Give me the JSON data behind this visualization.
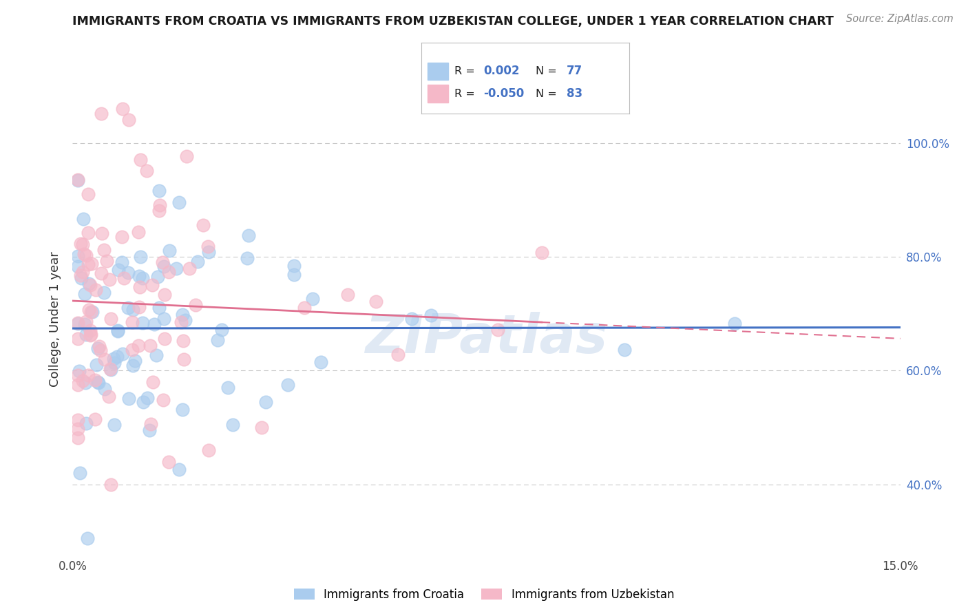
{
  "title": "IMMIGRANTS FROM CROATIA VS IMMIGRANTS FROM UZBEKISTAN COLLEGE, UNDER 1 YEAR CORRELATION CHART",
  "source": "Source: ZipAtlas.com",
  "ylabel": "College, Under 1 year",
  "xlim": [
    0.0,
    0.15
  ],
  "ylim": [
    0.28,
    1.1
  ],
  "right_yticks": [
    0.4,
    0.6,
    0.8,
    1.0
  ],
  "right_yticklabels": [
    "40.0%",
    "60.0%",
    "80.0%",
    "100.0%"
  ],
  "series": [
    {
      "name": "Immigrants from Croatia",
      "R": 0.002,
      "N": 77,
      "color": "#aaccee",
      "line_color": "#4472c4",
      "trend_style": "solid"
    },
    {
      "name": "Immigrants from Uzbekistan",
      "R": -0.05,
      "N": 83,
      "color": "#f5b8c8",
      "line_color": "#e07090",
      "trend_style": "dashed"
    }
  ],
  "legend_box_colors": [
    "#aaccee",
    "#f5b8c8"
  ],
  "r_label_color": "#222222",
  "rv_color": "#4472c4",
  "nv_color": "#4472c4",
  "watermark": "ZIPatlas",
  "background_color": "#ffffff",
  "grid_color": "#bbbbbb",
  "title_color": "#1a1a1a",
  "source_color": "#888888"
}
